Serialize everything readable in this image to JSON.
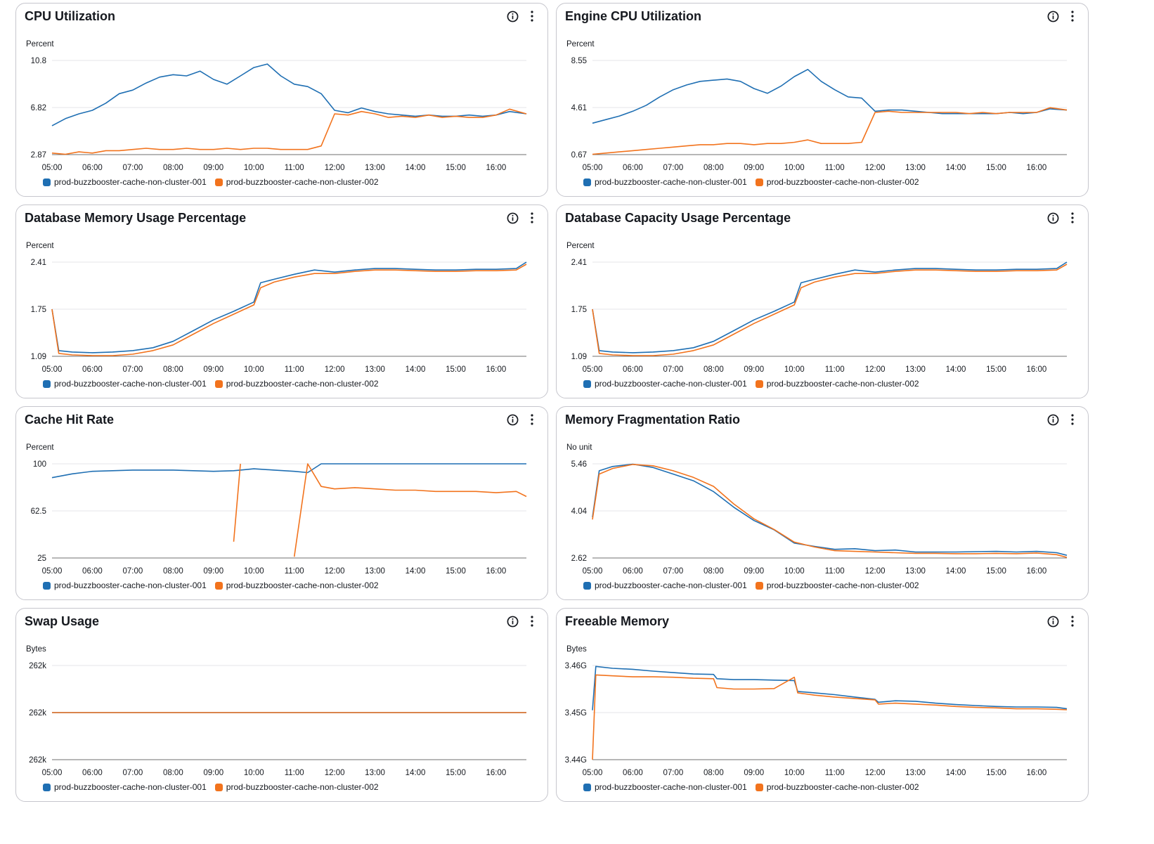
{
  "colors": {
    "series1": "#1f6fb3",
    "series2": "#f2731d",
    "grid": "#e6e6e9",
    "axis": "#6f6f6f"
  },
  "x_ticks": [
    "05:00",
    "06:00",
    "07:00",
    "08:00",
    "09:00",
    "10:00",
    "11:00",
    "12:00",
    "13:00",
    "14:00",
    "15:00",
    "16:00"
  ],
  "legend": [
    "prod-buzzbooster-cache-non-cluster-001",
    "prod-buzzbooster-cache-non-cluster-002"
  ],
  "icons": {
    "info": "info-icon",
    "menu": "more-vertical-icon"
  },
  "panels": [
    {
      "title": "CPU Utilization",
      "chart_data": {
        "type": "line",
        "unit": "Percent",
        "y_ticks": [
          "10.8",
          "6.82",
          "2.87"
        ],
        "ylim": [
          2.87,
          10.8
        ],
        "x": [
          "05:00",
          "05:20",
          "05:40",
          "06:00",
          "06:20",
          "06:40",
          "07:00",
          "07:20",
          "07:40",
          "08:00",
          "08:20",
          "08:40",
          "09:00",
          "09:20",
          "09:40",
          "10:00",
          "10:20",
          "10:40",
          "11:00",
          "11:20",
          "11:40",
          "12:00",
          "12:20",
          "12:40",
          "13:00",
          "13:20",
          "13:40",
          "14:00",
          "14:20",
          "14:40",
          "15:00",
          "15:20",
          "15:40",
          "16:00",
          "16:20",
          "16:45"
        ],
        "series": [
          {
            "name": "prod-buzzbooster-cache-non-cluster-001",
            "values": [
              5.3,
              5.9,
              6.3,
              6.6,
              7.2,
              8.0,
              8.3,
              8.9,
              9.4,
              9.6,
              9.5,
              9.9,
              9.2,
              8.8,
              9.5,
              10.2,
              10.5,
              9.5,
              8.8,
              8.6,
              8.0,
              6.6,
              6.4,
              6.8,
              6.5,
              6.3,
              6.2,
              6.1,
              6.2,
              6.1,
              6.1,
              6.2,
              6.1,
              6.2,
              6.5,
              6.3
            ]
          },
          {
            "name": "prod-buzzbooster-cache-non-cluster-002",
            "values": [
              3.0,
              2.9,
              3.1,
              3.0,
              3.2,
              3.2,
              3.3,
              3.4,
              3.3,
              3.3,
              3.4,
              3.3,
              3.3,
              3.4,
              3.3,
              3.4,
              3.4,
              3.3,
              3.3,
              3.3,
              3.6,
              6.3,
              6.2,
              6.5,
              6.3,
              6.0,
              6.1,
              6.0,
              6.2,
              6.0,
              6.1,
              6.0,
              6.0,
              6.2,
              6.7,
              6.3
            ]
          }
        ]
      }
    },
    {
      "title": "Engine CPU Utilization",
      "chart_data": {
        "type": "line",
        "unit": "Percent",
        "y_ticks": [
          "8.55",
          "4.61",
          "0.67"
        ],
        "ylim": [
          0.67,
          8.55
        ],
        "x": [
          "05:00",
          "05:20",
          "05:40",
          "06:00",
          "06:20",
          "06:40",
          "07:00",
          "07:20",
          "07:40",
          "08:00",
          "08:20",
          "08:40",
          "09:00",
          "09:20",
          "09:40",
          "10:00",
          "10:20",
          "10:40",
          "11:00",
          "11:20",
          "11:40",
          "12:00",
          "12:20",
          "12:40",
          "13:00",
          "13:20",
          "13:40",
          "14:00",
          "14:20",
          "14:40",
          "15:00",
          "15:20",
          "15:40",
          "16:00",
          "16:20",
          "16:45"
        ],
        "series": [
          {
            "name": "prod-buzzbooster-cache-non-cluster-001",
            "values": [
              3.3,
              3.6,
              3.9,
              4.3,
              4.8,
              5.5,
              6.1,
              6.5,
              6.8,
              6.9,
              7.0,
              6.8,
              6.2,
              5.8,
              6.4,
              7.2,
              7.8,
              6.8,
              6.1,
              5.5,
              5.4,
              4.3,
              4.4,
              4.4,
              4.3,
              4.2,
              4.1,
              4.1,
              4.1,
              4.1,
              4.1,
              4.2,
              4.1,
              4.2,
              4.5,
              4.4
            ]
          },
          {
            "name": "prod-buzzbooster-cache-non-cluster-002",
            "values": [
              0.7,
              0.8,
              0.9,
              1.0,
              1.1,
              1.2,
              1.3,
              1.4,
              1.5,
              1.5,
              1.6,
              1.6,
              1.5,
              1.6,
              1.6,
              1.7,
              1.9,
              1.6,
              1.6,
              1.6,
              1.7,
              4.2,
              4.3,
              4.2,
              4.2,
              4.2,
              4.2,
              4.2,
              4.1,
              4.2,
              4.1,
              4.2,
              4.2,
              4.2,
              4.6,
              4.4
            ]
          }
        ]
      }
    },
    {
      "title": "Database Memory Usage Percentage",
      "chart_data": {
        "type": "line",
        "unit": "Percent",
        "y_ticks": [
          "2.41",
          "1.75",
          "1.09"
        ],
        "ylim": [
          1.09,
          2.41
        ],
        "x": [
          "05:00",
          "05:10",
          "05:30",
          "06:00",
          "06:30",
          "07:00",
          "07:30",
          "08:00",
          "08:30",
          "09:00",
          "09:30",
          "10:00",
          "10:10",
          "10:30",
          "11:00",
          "11:30",
          "12:00",
          "12:30",
          "13:00",
          "13:30",
          "14:00",
          "14:30",
          "15:00",
          "15:30",
          "16:00",
          "16:30",
          "16:45"
        ],
        "series": [
          {
            "name": "prod-buzzbooster-cache-non-cluster-001",
            "values": [
              1.75,
              1.17,
              1.15,
              1.14,
              1.15,
              1.17,
              1.21,
              1.3,
              1.45,
              1.6,
              1.72,
              1.85,
              2.12,
              2.17,
              2.24,
              2.3,
              2.27,
              2.3,
              2.32,
              2.32,
              2.31,
              2.3,
              2.3,
              2.31,
              2.31,
              2.32,
              2.41
            ]
          },
          {
            "name": "prod-buzzbooster-cache-non-cluster-002",
            "values": [
              1.75,
              1.13,
              1.11,
              1.1,
              1.1,
              1.12,
              1.17,
              1.25,
              1.4,
              1.55,
              1.68,
              1.81,
              2.05,
              2.13,
              2.2,
              2.25,
              2.25,
              2.28,
              2.3,
              2.3,
              2.29,
              2.28,
              2.28,
              2.29,
              2.29,
              2.3,
              2.38
            ]
          }
        ]
      }
    },
    {
      "title": "Database Capacity Usage Percentage",
      "chart_data": {
        "type": "line",
        "unit": "Percent",
        "y_ticks": [
          "2.41",
          "1.75",
          "1.09"
        ],
        "ylim": [
          1.09,
          2.41
        ],
        "x": [
          "05:00",
          "05:10",
          "05:30",
          "06:00",
          "06:30",
          "07:00",
          "07:30",
          "08:00",
          "08:30",
          "09:00",
          "09:30",
          "10:00",
          "10:10",
          "10:30",
          "11:00",
          "11:30",
          "12:00",
          "12:30",
          "13:00",
          "13:30",
          "14:00",
          "14:30",
          "15:00",
          "15:30",
          "16:00",
          "16:30",
          "16:45"
        ],
        "series": [
          {
            "name": "prod-buzzbooster-cache-non-cluster-001",
            "values": [
              1.75,
              1.17,
              1.15,
              1.14,
              1.15,
              1.17,
              1.21,
              1.3,
              1.45,
              1.6,
              1.72,
              1.85,
              2.12,
              2.17,
              2.24,
              2.3,
              2.27,
              2.3,
              2.32,
              2.32,
              2.31,
              2.3,
              2.3,
              2.31,
              2.31,
              2.32,
              2.41
            ]
          },
          {
            "name": "prod-buzzbooster-cache-non-cluster-002",
            "values": [
              1.75,
              1.13,
              1.11,
              1.1,
              1.1,
              1.12,
              1.17,
              1.25,
              1.4,
              1.55,
              1.68,
              1.81,
              2.05,
              2.13,
              2.2,
              2.25,
              2.25,
              2.28,
              2.3,
              2.3,
              2.29,
              2.28,
              2.28,
              2.29,
              2.29,
              2.3,
              2.38
            ]
          }
        ]
      }
    },
    {
      "title": "Cache Hit Rate",
      "chart_data": {
        "type": "line",
        "unit": "Percent",
        "y_ticks": [
          "100",
          "62.5",
          "25"
        ],
        "ylim": [
          25,
          100
        ],
        "x": [
          "05:00",
          "05:30",
          "06:00",
          "06:30",
          "07:00",
          "07:30",
          "08:00",
          "08:30",
          "09:00",
          "09:30",
          "09:40",
          "10:00",
          "10:30",
          "11:00",
          "11:20",
          "11:40",
          "12:00",
          "12:30",
          "13:00",
          "13:30",
          "14:00",
          "14:30",
          "15:00",
          "15:30",
          "16:00",
          "16:30",
          "16:45"
        ],
        "series": [
          {
            "name": "prod-buzzbooster-cache-non-cluster-001",
            "values": [
              89,
              92,
              94,
              94.5,
              95,
              95,
              95,
              94.5,
              94,
              94.5,
              95,
              96,
              95,
              94,
              93,
              100,
              100,
              100,
              100,
              100,
              100,
              100,
              100,
              100,
              100,
              100,
              100
            ]
          },
          {
            "name": "prod-buzzbooster-cache-non-cluster-002",
            "values": [
              null,
              null,
              null,
              null,
              null,
              null,
              null,
              null,
              null,
              38,
              100,
              null,
              null,
              26,
              100,
              82,
              80,
              81,
              80,
              79,
              79,
              78,
              78,
              78,
              77,
              78,
              74
            ]
          }
        ]
      }
    },
    {
      "title": "Memory Fragmentation Ratio",
      "chart_data": {
        "type": "line",
        "unit": "No unit",
        "y_ticks": [
          "5.46",
          "4.04",
          "2.62"
        ],
        "ylim": [
          2.62,
          5.46
        ],
        "x": [
          "05:00",
          "05:10",
          "05:30",
          "06:00",
          "06:30",
          "07:00",
          "07:30",
          "08:00",
          "08:30",
          "09:00",
          "09:30",
          "10:00",
          "10:30",
          "11:00",
          "11:30",
          "12:00",
          "12:30",
          "13:00",
          "13:30",
          "14:00",
          "14:30",
          "15:00",
          "15:30",
          "16:00",
          "16:30",
          "16:45"
        ],
        "series": [
          {
            "name": "prod-buzzbooster-cache-non-cluster-001",
            "values": [
              3.85,
              5.25,
              5.38,
              5.45,
              5.35,
              5.15,
              4.95,
              4.62,
              4.15,
              3.75,
              3.47,
              3.07,
              2.97,
              2.88,
              2.9,
              2.84,
              2.86,
              2.8,
              2.8,
              2.8,
              2.81,
              2.82,
              2.8,
              2.82,
              2.78,
              2.7
            ]
          },
          {
            "name": "prod-buzzbooster-cache-non-cluster-002",
            "values": [
              3.78,
              5.15,
              5.32,
              5.44,
              5.4,
              5.25,
              5.05,
              4.78,
              4.25,
              3.8,
              3.48,
              3.1,
              2.95,
              2.84,
              2.82,
              2.8,
              2.78,
              2.76,
              2.76,
              2.75,
              2.75,
              2.76,
              2.75,
              2.77,
              2.72,
              2.64
            ]
          }
        ]
      }
    },
    {
      "title": "Swap Usage",
      "chart_data": {
        "type": "line",
        "unit": "Bytes",
        "y_ticks": [
          "262k",
          "262k",
          "262k"
        ],
        "ylim": [
          0,
          2
        ],
        "x": [
          "05:00",
          "16:45"
        ],
        "series": [
          {
            "name": "prod-buzzbooster-cache-non-cluster-001",
            "values": [
              1,
              1
            ]
          },
          {
            "name": "prod-buzzbooster-cache-non-cluster-002",
            "values": [
              1,
              1
            ]
          }
        ]
      }
    },
    {
      "title": "Freeable Memory",
      "chart_data": {
        "type": "line",
        "unit": "Bytes",
        "y_ticks": [
          "3.46G",
          "3.45G",
          "3.44G"
        ],
        "ylim": [
          3.44,
          3.46
        ],
        "x": [
          "05:00",
          "05:05",
          "05:30",
          "06:00",
          "06:30",
          "07:00",
          "07:30",
          "08:00",
          "08:05",
          "08:30",
          "09:00",
          "09:30",
          "10:00",
          "10:05",
          "10:30",
          "11:00",
          "11:30",
          "12:00",
          "12:05",
          "12:30",
          "13:00",
          "13:30",
          "14:00",
          "14:30",
          "15:00",
          "15:30",
          "16:00",
          "16:30",
          "16:45"
        ],
        "series": [
          {
            "name": "prod-buzzbooster-cache-non-cluster-001",
            "values": [
              3.4505,
              3.4598,
              3.4594,
              3.4592,
              3.4588,
              3.4585,
              3.4582,
              3.4581,
              3.4572,
              3.457,
              3.457,
              3.4569,
              3.4568,
              3.4545,
              3.4542,
              3.4538,
              3.4533,
              3.4528,
              3.4522,
              3.4525,
              3.4524,
              3.452,
              3.4517,
              3.4515,
              3.4513,
              3.4512,
              3.4512,
              3.4511,
              3.4508
            ]
          },
          {
            "name": "prod-buzzbooster-cache-non-cluster-002",
            "values": [
              3.44,
              3.458,
              3.4578,
              3.4576,
              3.4576,
              3.4575,
              3.4573,
              3.4572,
              3.4553,
              3.455,
              3.455,
              3.4551,
              3.4575,
              3.4542,
              3.4537,
              3.4533,
              3.453,
              3.4527,
              3.4518,
              3.452,
              3.4518,
              3.4516,
              3.4513,
              3.4511,
              3.451,
              3.4508,
              3.4508,
              3.4507,
              3.4506
            ]
          }
        ]
      }
    }
  ]
}
